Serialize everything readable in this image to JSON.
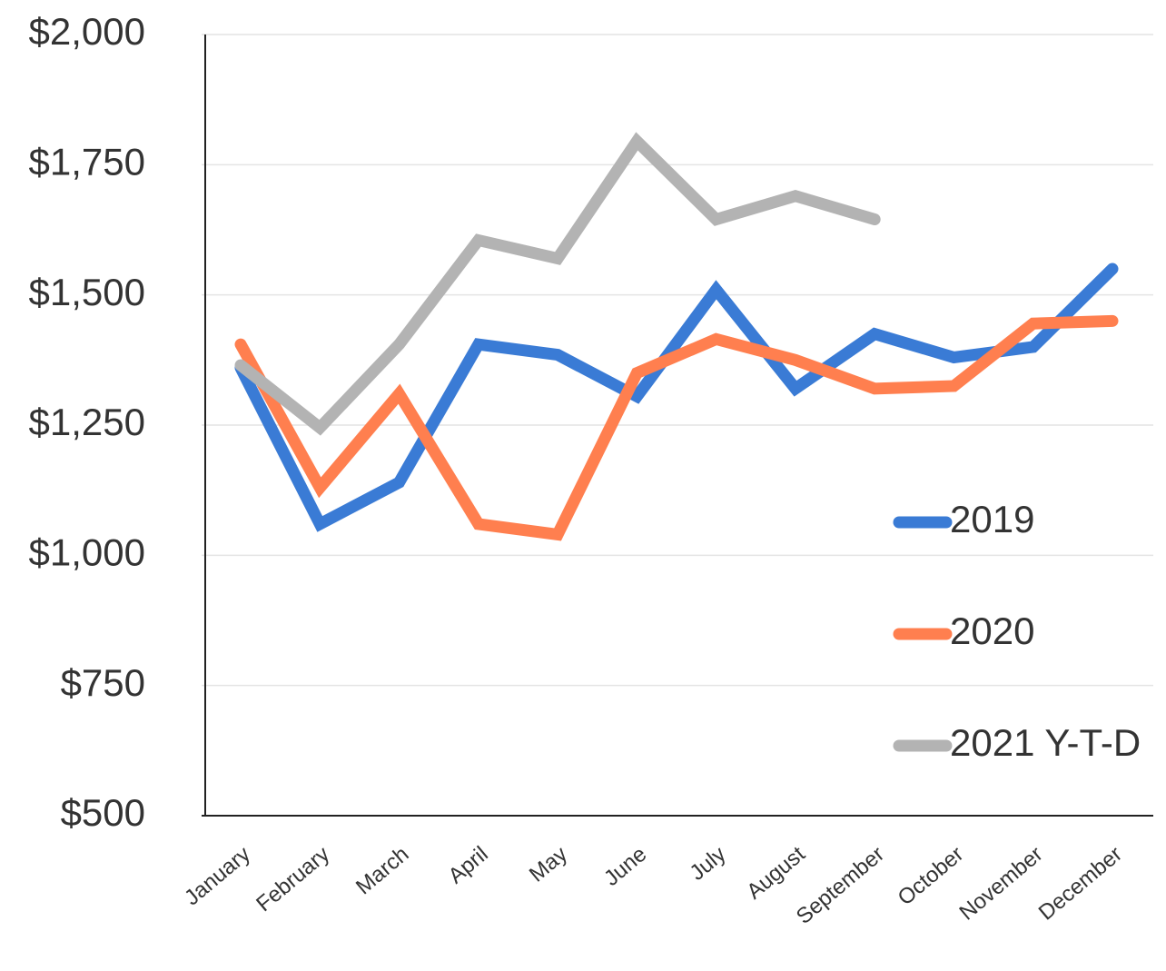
{
  "chart_data": {
    "type": "line",
    "categories": [
      "January",
      "February",
      "March",
      "April",
      "May",
      "June",
      "July",
      "August",
      "September",
      "October",
      "November",
      "December"
    ],
    "series": [
      {
        "name": "2019",
        "color": "#3a7bd5",
        "values": [
          1360,
          1060,
          1140,
          1405,
          1385,
          1305,
          1510,
          1320,
          1425,
          1380,
          1400,
          1550
        ]
      },
      {
        "name": "2020",
        "color": "#ff7f4f",
        "values": [
          1405,
          1130,
          1310,
          1060,
          1040,
          1350,
          1415,
          1375,
          1320,
          1325,
          1445,
          1450
        ]
      },
      {
        "name": "2021 Y-T-D",
        "color": "#b3b3b3",
        "values": [
          1365,
          1245,
          1405,
          1605,
          1570,
          1795,
          1645,
          1690,
          1645,
          null,
          null,
          null
        ]
      }
    ],
    "ylim": [
      500,
      2000
    ],
    "yticks": [
      {
        "value": 500,
        "label": "$500"
      },
      {
        "value": 750,
        "label": "$750"
      },
      {
        "value": 1000,
        "label": "$1,000"
      },
      {
        "value": 1250,
        "label": "$1,250"
      },
      {
        "value": 1500,
        "label": "$1,500"
      },
      {
        "value": 1750,
        "label": "$1,750"
      },
      {
        "value": 2000,
        "label": "$2,000"
      }
    ],
    "grid": true,
    "legend": "right"
  }
}
